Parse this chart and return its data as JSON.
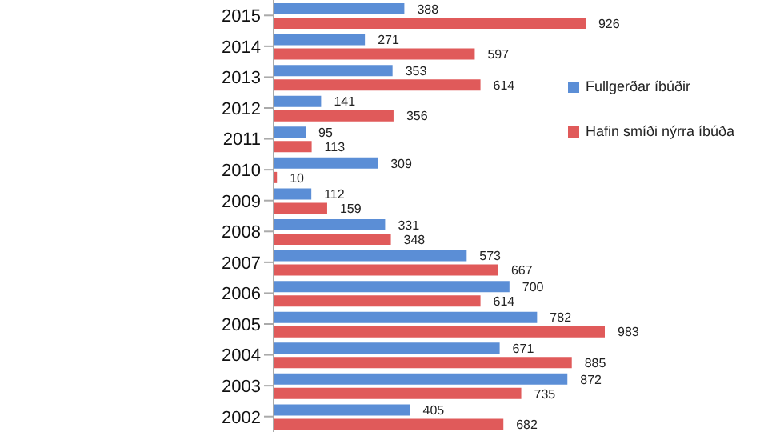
{
  "chart_data": {
    "type": "bar",
    "orientation": "horizontal",
    "categories": [
      "2015",
      "2014",
      "2013",
      "2012",
      "2011",
      "2010",
      "2009",
      "2008",
      "2007",
      "2006",
      "2005",
      "2004",
      "2003",
      "2002"
    ],
    "series": [
      {
        "name": "Fullgerðar íbúðir",
        "color": "#5b8ed6",
        "values": [
          388,
          271,
          353,
          141,
          95,
          309,
          112,
          331,
          573,
          700,
          782,
          671,
          872,
          405
        ]
      },
      {
        "name": "Hafin smíði nýrra íbúða",
        "color": "#e05a5a",
        "values": [
          926,
          597,
          614,
          356,
          113,
          10,
          159,
          348,
          667,
          614,
          983,
          885,
          735,
          682
        ]
      }
    ],
    "data_labels": true,
    "legend": "top right"
  }
}
